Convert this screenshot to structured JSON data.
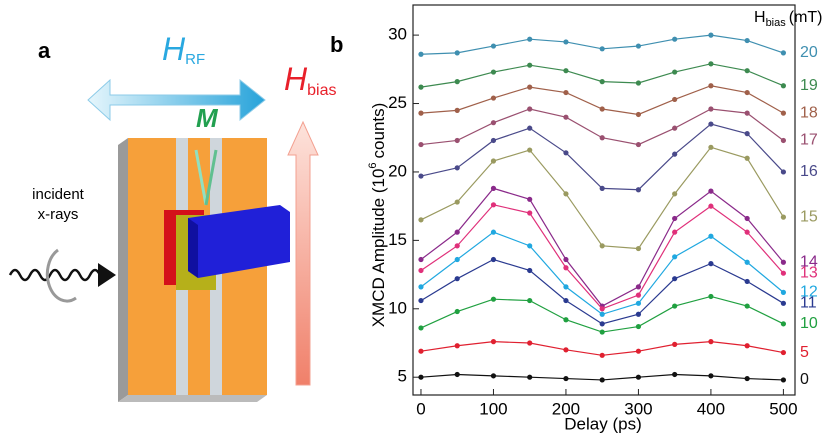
{
  "diagram": {
    "panel_label": "a",
    "h_rf": {
      "main": "H",
      "sub": "RF"
    },
    "m_label": "M",
    "h_bias": {
      "main": "H",
      "sub": "bias"
    },
    "incident": [
      "incident",
      "x-rays"
    ]
  },
  "chart_data": {
    "type": "line",
    "panel_label": "b",
    "x_label": "Delay (ps)",
    "y_label": {
      "text": "XMCD Amplitude (10",
      "sup": "6",
      "end": "counts)"
    },
    "legend_title": {
      "main": "H",
      "sub": "bias",
      "unit": "(mT)"
    },
    "x": [
      0,
      50,
      100,
      150,
      200,
      250,
      300,
      350,
      400,
      450,
      500
    ],
    "xlim": [
      -11,
      516
    ],
    "xticks": [
      0,
      100,
      200,
      300,
      400,
      500
    ],
    "ylim": [
      3.7,
      32.2
    ],
    "yticks": [
      5,
      10,
      15,
      20,
      25,
      30
    ],
    "series": [
      {
        "name": "20",
        "color": "#3f8fb0",
        "values": [
          28.6,
          28.7,
          29.2,
          29.7,
          29.5,
          29.0,
          29.2,
          29.7,
          30.0,
          29.6,
          28.7
        ]
      },
      {
        "name": "19",
        "color": "#3d8a50",
        "values": [
          26.2,
          26.6,
          27.3,
          27.8,
          27.4,
          26.6,
          26.5,
          27.3,
          27.9,
          27.4,
          26.3
        ]
      },
      {
        "name": "18",
        "color": "#a0604a",
        "values": [
          24.3,
          24.5,
          25.4,
          26.2,
          25.8,
          24.6,
          24.2,
          25.3,
          26.3,
          25.8,
          24.3
        ]
      },
      {
        "name": "17",
        "color": "#9a5070",
        "values": [
          22.0,
          22.3,
          23.6,
          24.6,
          24.0,
          22.5,
          22.0,
          23.2,
          24.6,
          24.3,
          22.3
        ]
      },
      {
        "name": "16",
        "color": "#4a4a8a",
        "values": [
          19.7,
          20.3,
          22.3,
          23.2,
          21.4,
          18.8,
          18.7,
          21.3,
          23.5,
          22.8,
          20.0
        ]
      },
      {
        "name": "15",
        "color": "#9a9a60",
        "values": [
          16.5,
          17.8,
          20.8,
          21.6,
          18.4,
          14.6,
          14.4,
          18.4,
          21.8,
          21.0,
          16.7
        ]
      },
      {
        "name": "14",
        "color": "#8a2a8a",
        "values": [
          13.6,
          15.6,
          18.8,
          18.0,
          13.6,
          10.2,
          11.6,
          16.6,
          18.6,
          16.6,
          13.4
        ]
      },
      {
        "name": "13",
        "color": "#e0307a",
        "values": [
          12.8,
          14.6,
          17.6,
          17.0,
          13.0,
          10.0,
          11.0,
          15.6,
          17.5,
          15.6,
          12.6
        ]
      },
      {
        "name": "12",
        "color": "#20a8e0",
        "values": [
          11.6,
          13.6,
          15.6,
          14.6,
          11.6,
          9.6,
          10.4,
          13.8,
          15.3,
          13.4,
          11.2
        ]
      },
      {
        "name": "11",
        "color": "#2a3a90",
        "values": [
          10.6,
          12.2,
          13.6,
          12.8,
          10.6,
          8.9,
          9.6,
          12.2,
          13.3,
          12.0,
          10.4
        ]
      },
      {
        "name": "10",
        "color": "#20a040",
        "values": [
          8.6,
          9.8,
          10.7,
          10.6,
          9.2,
          8.3,
          8.7,
          10.2,
          10.9,
          10.2,
          8.9
        ]
      },
      {
        "name": "5",
        "color": "#e02030",
        "values": [
          6.9,
          7.3,
          7.6,
          7.5,
          7.0,
          6.6,
          6.9,
          7.4,
          7.6,
          7.3,
          6.8
        ]
      },
      {
        "name": "0",
        "color": "#111111",
        "values": [
          5.0,
          5.2,
          5.1,
          5.0,
          4.9,
          4.8,
          5.0,
          5.2,
          5.1,
          4.9,
          4.8
        ]
      }
    ]
  }
}
